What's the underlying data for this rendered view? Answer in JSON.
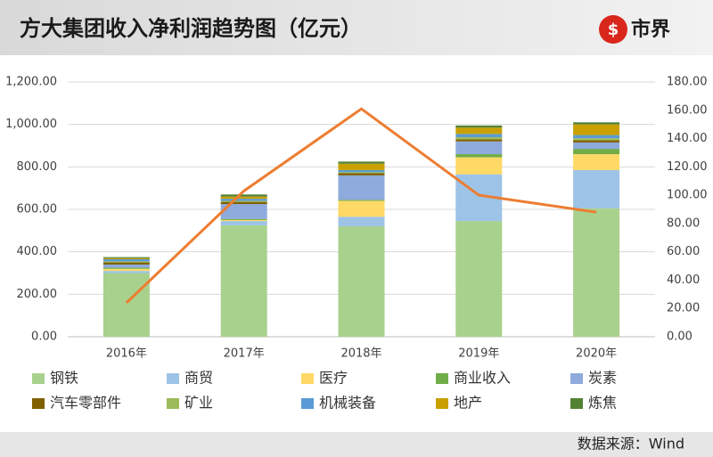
{
  "header": {
    "title": "方大集团收入净利润趋势图（亿元）",
    "logo": "市界"
  },
  "footer": {
    "source": "数据来源：Wind"
  },
  "chart_data": {
    "type": "bar",
    "stacked": true,
    "categories": [
      "2016年",
      "2017年",
      "2018年",
      "2019年",
      "2020年"
    ],
    "series": [
      {
        "name": "钢铁",
        "color": "#A9D18E",
        "values": [
          300,
          525,
          520,
          545,
          605
        ]
      },
      {
        "name": "商贸",
        "color": "#9DC3E6",
        "values": [
          10,
          20,
          45,
          220,
          180
        ]
      },
      {
        "name": "医疗",
        "color": "#FFD966",
        "values": [
          10,
          5,
          75,
          80,
          75
        ]
      },
      {
        "name": "商业收入",
        "color": "#70AD47",
        "values": [
          5,
          5,
          5,
          15,
          25
        ]
      },
      {
        "name": "炭素",
        "color": "#8FAADC",
        "values": [
          15,
          70,
          115,
          60,
          30
        ]
      },
      {
        "name": "汽车零部件",
        "color": "#806000",
        "values": [
          10,
          10,
          10,
          10,
          10
        ]
      },
      {
        "name": "矿业",
        "color": "#9BBB59",
        "values": [
          5,
          5,
          5,
          10,
          10
        ]
      },
      {
        "name": "机械装备",
        "color": "#5B9BD5",
        "values": [
          10,
          10,
          10,
          15,
          15
        ]
      },
      {
        "name": "地产",
        "color": "#C9A000",
        "values": [
          5,
          10,
          30,
          30,
          50
        ]
      },
      {
        "name": "炼焦",
        "color": "#548235",
        "values": [
          5,
          10,
          10,
          10,
          10
        ]
      },
      {
        "type": "line",
        "axis": "y2",
        "color": "#ED7D31",
        "values": [
          24,
          103,
          161,
          100,
          88
        ]
      }
    ],
    "ylim": [
      0,
      1200
    ],
    "yticks": [
      {
        "value": 0,
        "label": "0.00"
      },
      {
        "value": 200,
        "label": "200.00"
      },
      {
        "value": 400,
        "label": "400.00"
      },
      {
        "value": 600,
        "label": "600.00"
      },
      {
        "value": 800,
        "label": "800.00"
      },
      {
        "value": 1000,
        "label": "1,000.00"
      },
      {
        "value": 1200,
        "label": "1,200.00"
      }
    ],
    "y2lim": [
      0,
      180
    ],
    "y2ticks": [
      {
        "value": 0,
        "label": "0.00"
      },
      {
        "value": 20,
        "label": "20.00"
      },
      {
        "value": 40,
        "label": "40.00"
      },
      {
        "value": 60,
        "label": "60.00"
      },
      {
        "value": 80,
        "label": "80.00"
      },
      {
        "value": 100,
        "label": "100.00"
      },
      {
        "value": 120,
        "label": "120.00"
      },
      {
        "value": 140,
        "label": "140.00"
      },
      {
        "value": 160,
        "label": "160.00"
      },
      {
        "value": 180,
        "label": "180.00"
      }
    ],
    "grid": true
  }
}
